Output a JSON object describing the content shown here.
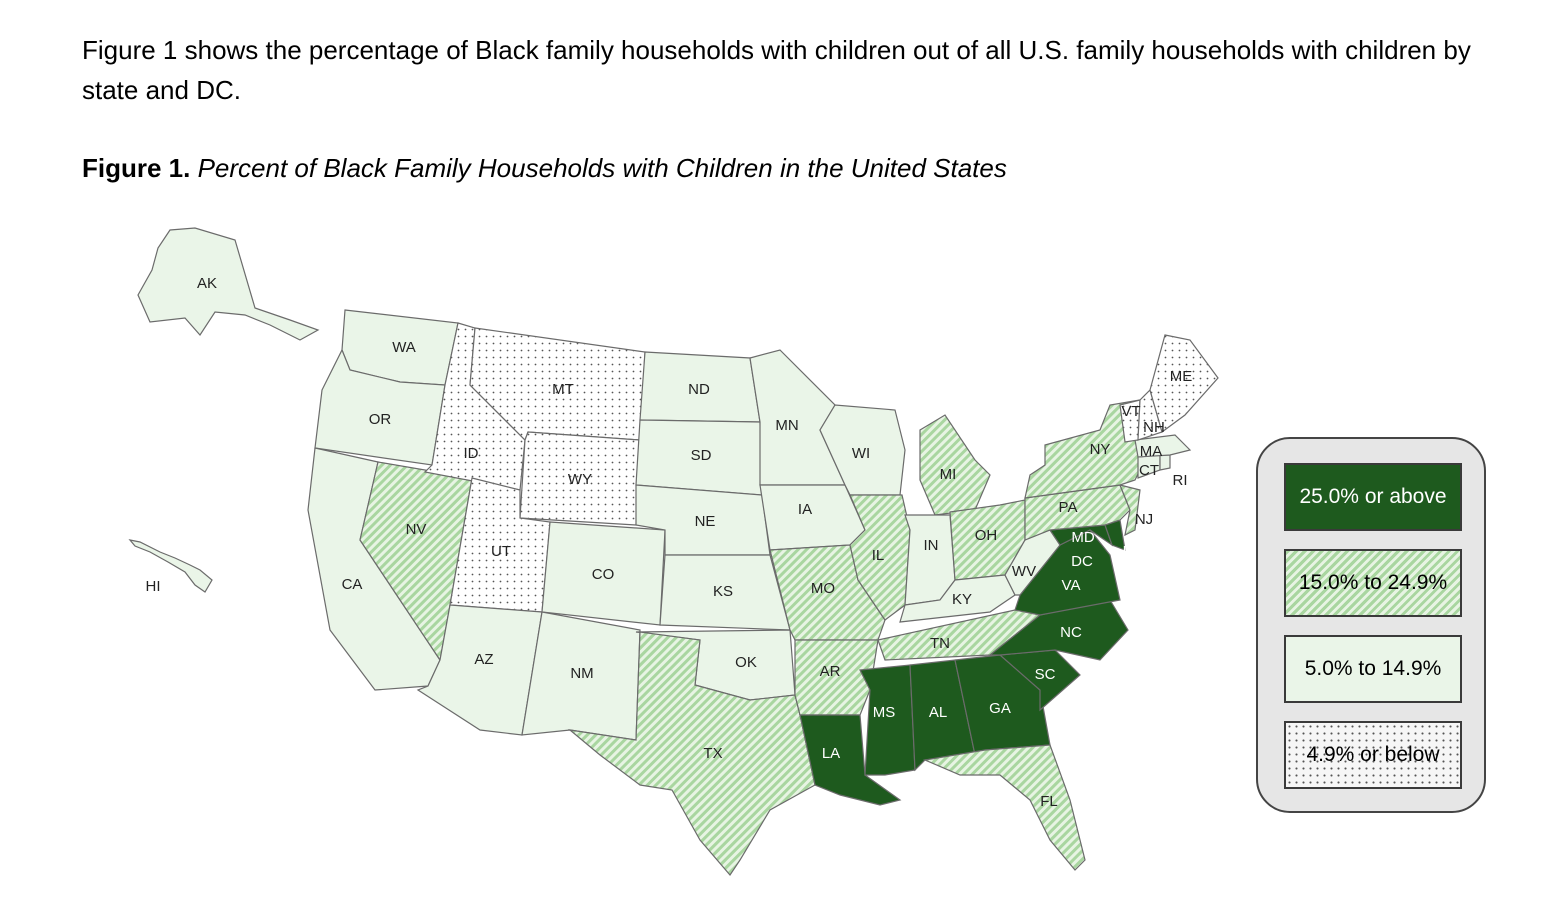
{
  "intro_text": "Figure 1 shows the percentage of Black family households with children out of all U.S. family households with children by state and DC.",
  "figure": {
    "label": "Figure 1.",
    "title": "Percent of Black Family Households with Children in the United States"
  },
  "legend": {
    "items": [
      {
        "key": "c4",
        "label": "25.0% or above"
      },
      {
        "key": "c3",
        "label": "15.0% to 24.9%"
      },
      {
        "key": "c2",
        "label": "5.0% to 14.9%"
      },
      {
        "key": "c1",
        "label": "4.9% or below"
      }
    ]
  },
  "colors": {
    "dark_green": "#1e5a1e",
    "hatch_green": "#a9d6a0",
    "light_green": "#eaf5e8",
    "dots": "#555555",
    "state_border": "#6b6b6b"
  },
  "chart_data": {
    "type": "choropleth",
    "region": "United States",
    "categories": [
      "25.0% or above",
      "15.0% to 24.9%",
      "5.0% to 14.9%",
      "4.9% or below"
    ],
    "states": {
      "AK": "5.0% to 14.9%",
      "WA": "5.0% to 14.9%",
      "OR": "5.0% to 14.9%",
      "CA": "5.0% to 14.9%",
      "NV": "15.0% to 24.9%",
      "ID": "4.9% or below",
      "MT": "4.9% or below",
      "WY": "4.9% or below",
      "UT": "4.9% or below",
      "AZ": "5.0% to 14.9%",
      "CO": "5.0% to 14.9%",
      "NM": "5.0% to 14.9%",
      "ND": "5.0% to 14.9%",
      "SD": "5.0% to 14.9%",
      "NE": "5.0% to 14.9%",
      "KS": "5.0% to 14.9%",
      "OK": "5.0% to 14.9%",
      "TX": "15.0% to 24.9%",
      "MN": "5.0% to 14.9%",
      "IA": "5.0% to 14.9%",
      "MO": "15.0% to 24.9%",
      "AR": "15.0% to 24.9%",
      "LA": "25.0% or above",
      "WI": "5.0% to 14.9%",
      "IL": "15.0% to 24.9%",
      "MI": "15.0% to 24.9%",
      "IN": "5.0% to 14.9%",
      "OH": "15.0% to 24.9%",
      "KY": "5.0% to 14.9%",
      "TN": "15.0% to 24.9%",
      "MS": "25.0% or above",
      "AL": "25.0% or above",
      "GA": "25.0% or above",
      "FL": "15.0% to 24.9%",
      "SC": "25.0% or above",
      "NC": "25.0% or above",
      "VA": "25.0% or above",
      "WV": "5.0% to 14.9%",
      "MD": "25.0% or above",
      "DC": "25.0% or above",
      "DE": "25.0% or above",
      "PA": "15.0% to 24.9%",
      "NJ": "15.0% to 24.9%",
      "NY": "15.0% to 24.9%",
      "CT": "5.0% to 14.9%",
      "RI": "5.0% to 14.9%",
      "MA": "5.0% to 14.9%",
      "VT": "4.9% or below",
      "NH": "4.9% or below",
      "ME": "4.9% or below",
      "HI": "5.0% to 14.9%"
    }
  }
}
